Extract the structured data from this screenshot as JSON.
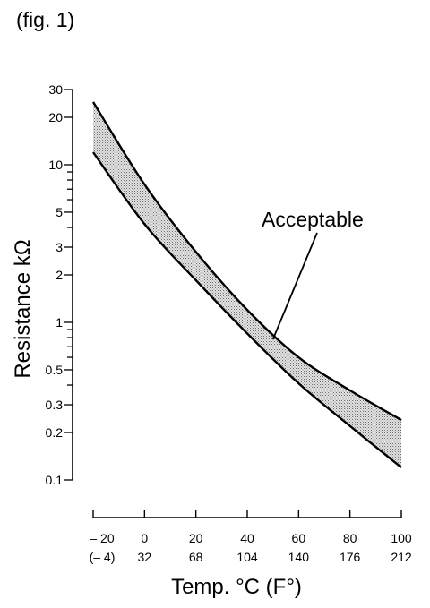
{
  "chart_data": {
    "type": "area",
    "figure_label": "(fig. 1)",
    "title": "",
    "xlabel": "Temp. °C (F°)",
    "ylabel": "Resistance kΩ",
    "y_scale": "log",
    "ylim": [
      0.1,
      30
    ],
    "xlim": [
      -20,
      100
    ],
    "grid": false,
    "x_ticks": [
      {
        "c": -20,
        "label_c": "– 20",
        "label_f": "(– 4)"
      },
      {
        "c": 0,
        "label_c": "0",
        "label_f": "32"
      },
      {
        "c": 20,
        "label_c": "20",
        "label_f": "68"
      },
      {
        "c": 40,
        "label_c": "40",
        "label_f": "104"
      },
      {
        "c": 60,
        "label_c": "60",
        "label_f": "140"
      },
      {
        "c": 80,
        "label_c": "80",
        "label_f": "176"
      },
      {
        "c": 100,
        "label_c": "100",
        "label_f": "212"
      }
    ],
    "y_ticks": [
      {
        "value": 0.1,
        "label": "0.1"
      },
      {
        "value": 0.2,
        "label": "0.2"
      },
      {
        "value": 0.3,
        "label": "0.3"
      },
      {
        "value": 0.4,
        "label": ""
      },
      {
        "value": 0.5,
        "label": "0.5"
      },
      {
        "value": 0.6,
        "label": ""
      },
      {
        "value": 0.7,
        "label": ""
      },
      {
        "value": 0.8,
        "label": ""
      },
      {
        "value": 0.9,
        "label": ""
      },
      {
        "value": 1,
        "label": "1"
      },
      {
        "value": 2,
        "label": "2"
      },
      {
        "value": 3,
        "label": "3"
      },
      {
        "value": 4,
        "label": ""
      },
      {
        "value": 5,
        "label": "5"
      },
      {
        "value": 6,
        "label": ""
      },
      {
        "value": 7,
        "label": ""
      },
      {
        "value": 8,
        "label": ""
      },
      {
        "value": 9,
        "label": ""
      },
      {
        "value": 10,
        "label": "10"
      },
      {
        "value": 20,
        "label": "20"
      },
      {
        "value": 30,
        "label": "30"
      }
    ],
    "band": {
      "x": [
        -20,
        0,
        20,
        40,
        60,
        80,
        100
      ],
      "upper": [
        25,
        7.5,
        2.8,
        1.2,
        0.6,
        0.37,
        0.24
      ],
      "lower": [
        12,
        4.2,
        1.85,
        0.85,
        0.41,
        0.22,
        0.12
      ]
    },
    "annotation": {
      "text": "Acceptable",
      "target_x": 50,
      "target_y": 0.78
    }
  }
}
